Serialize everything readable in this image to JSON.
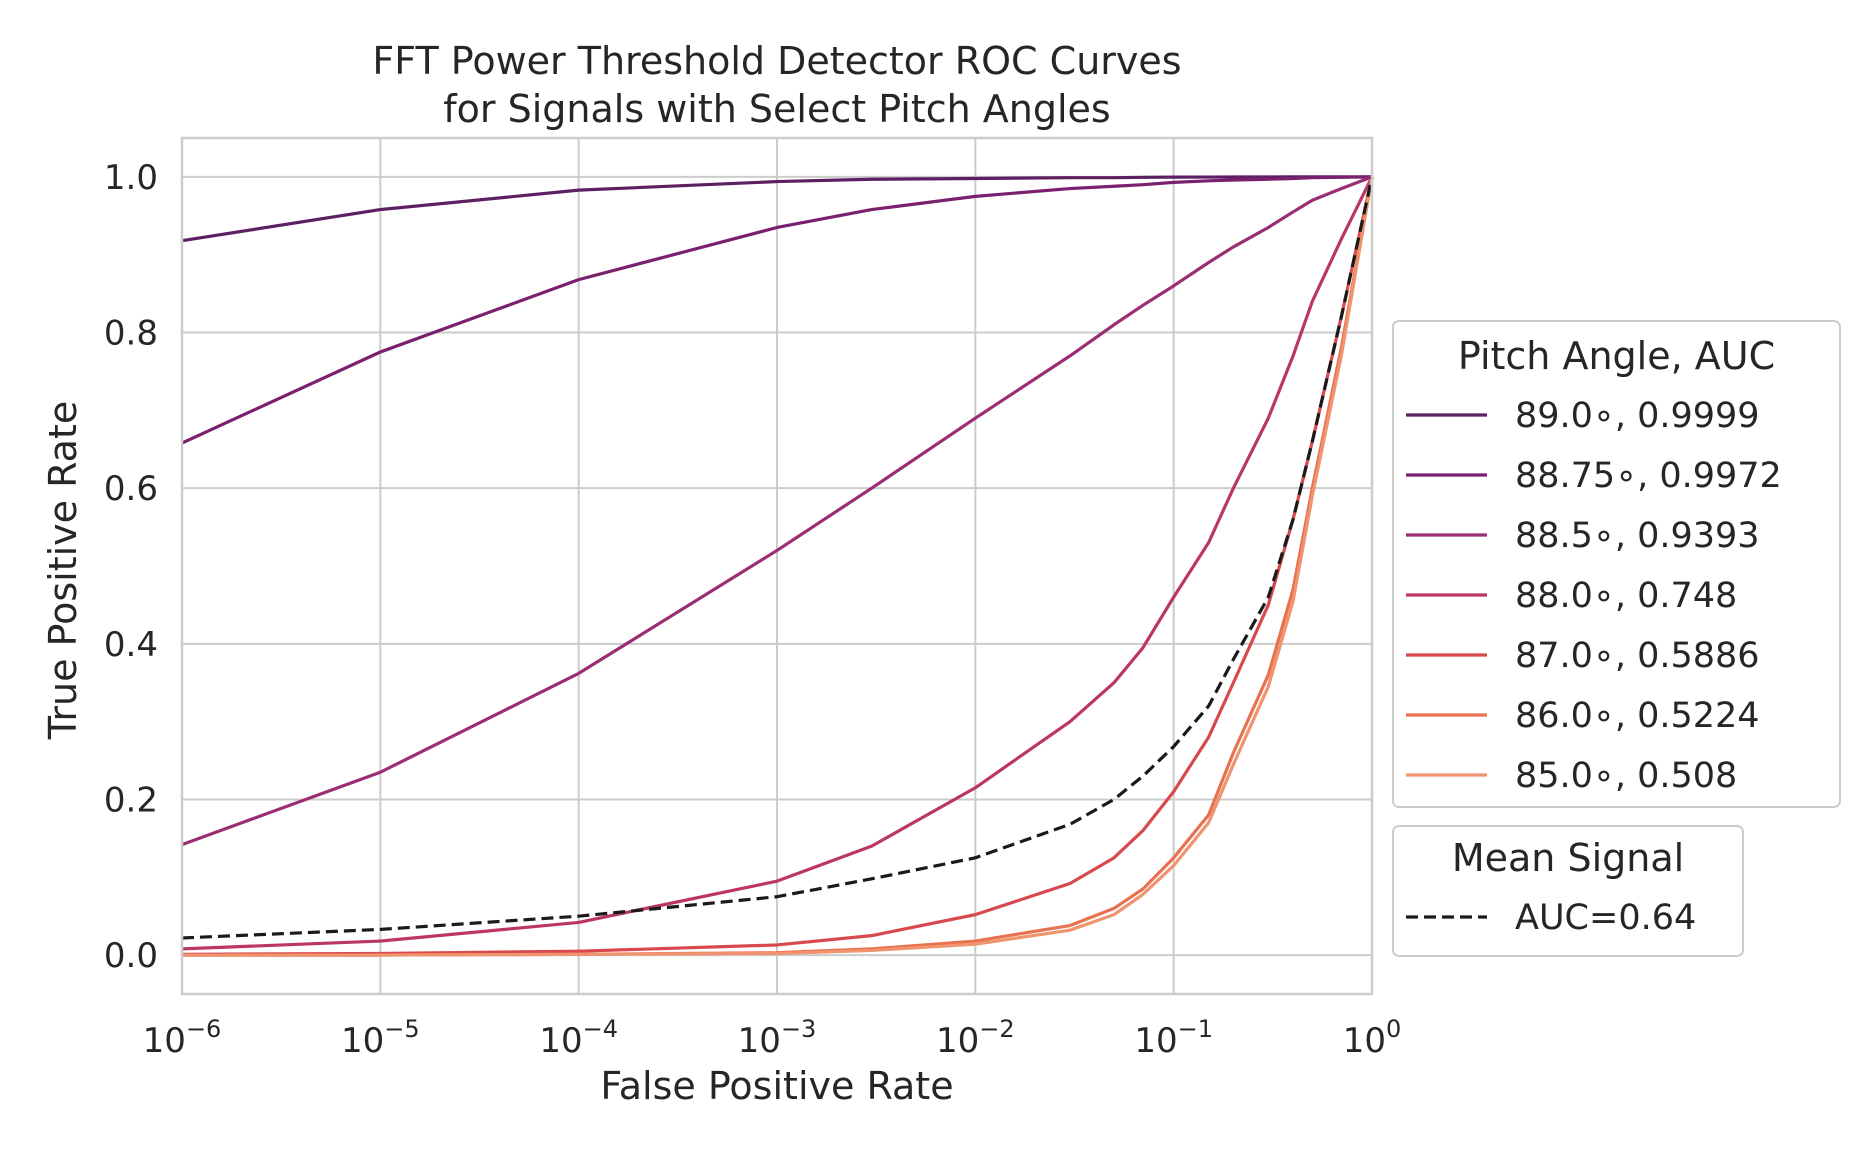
{
  "chart_data": {
    "type": "line",
    "title": "FFT Power Threshold Detector ROC Curves",
    "subtitle": "for Signals with Select Pitch Angles",
    "xlabel": "False Positive Rate",
    "ylabel": "True Positive Rate",
    "xscale": "log",
    "xlim": [
      1e-06,
      1
    ],
    "ylim": [
      -0.05,
      1.05
    ],
    "grid": true,
    "xticks": [
      {
        "value": 1e-06,
        "base": "10",
        "exp": "−6"
      },
      {
        "value": 1e-05,
        "base": "10",
        "exp": "−5"
      },
      {
        "value": 0.0001,
        "base": "10",
        "exp": "−4"
      },
      {
        "value": 0.001,
        "base": "10",
        "exp": "−3"
      },
      {
        "value": 0.01,
        "base": "10",
        "exp": "−2"
      },
      {
        "value": 0.1,
        "base": "10",
        "exp": "−1"
      },
      {
        "value": 1,
        "base": "10",
        "exp": "0"
      }
    ],
    "yticks": [
      {
        "value": 0.0,
        "label": "0.0"
      },
      {
        "value": 0.2,
        "label": "0.2"
      },
      {
        "value": 0.4,
        "label": "0.4"
      },
      {
        "value": 0.6,
        "label": "0.6"
      },
      {
        "value": 0.8,
        "label": "0.8"
      },
      {
        "value": 1.0,
        "label": "1.0"
      }
    ],
    "x": [
      1e-06,
      1e-05,
      0.0001,
      0.001,
      0.003,
      0.01,
      0.03,
      0.05,
      0.07,
      0.1,
      0.15,
      0.2,
      0.3,
      0.4,
      0.5,
      0.7,
      1.0
    ],
    "series": [
      {
        "name": "89.0$^\\circ$, 0.9999",
        "label": "89.0$^\\circ$, 0.9999",
        "color": "#5c1f62",
        "dash": "solid",
        "values": [
          0.918,
          0.958,
          0.983,
          0.994,
          0.997,
          0.998,
          0.999,
          0.999,
          0.9995,
          0.9997,
          0.9998,
          0.9999,
          0.9999,
          1.0,
          1.0,
          1.0,
          1.0
        ]
      },
      {
        "name": "88.75$^\\circ$, 0.9972",
        "label": "88.75$^\\circ$, 0.9972",
        "color": "#7b1f6f",
        "dash": "solid",
        "values": [
          0.658,
          0.775,
          0.868,
          0.935,
          0.958,
          0.975,
          0.985,
          0.988,
          0.99,
          0.993,
          0.995,
          0.996,
          0.997,
          0.998,
          0.999,
          0.9995,
          1.0
        ]
      },
      {
        "name": "88.5$^\\circ$, 0.9393",
        "label": "88.5$^\\circ$, 0.9393",
        "color": "#9a2d73",
        "dash": "solid",
        "values": [
          0.142,
          0.235,
          0.362,
          0.52,
          0.6,
          0.69,
          0.77,
          0.81,
          0.835,
          0.86,
          0.89,
          0.91,
          0.935,
          0.955,
          0.97,
          0.985,
          1.0
        ]
      },
      {
        "name": "88.0$^\\circ$, 0.748",
        "label": "88.0$^\\circ$, 0.748",
        "color": "#bb3666",
        "dash": "solid",
        "values": [
          0.008,
          0.018,
          0.042,
          0.095,
          0.14,
          0.215,
          0.3,
          0.35,
          0.395,
          0.46,
          0.53,
          0.6,
          0.69,
          0.77,
          0.84,
          0.92,
          1.0
        ]
      },
      {
        "name": "87.0$^\\circ$, 0.5886",
        "label": "87.0$^\\circ$, 0.5886",
        "color": "#d8494e",
        "dash": "solid",
        "values": [
          0.001,
          0.002,
          0.005,
          0.013,
          0.025,
          0.052,
          0.092,
          0.125,
          0.16,
          0.21,
          0.28,
          0.35,
          0.45,
          0.56,
          0.66,
          0.82,
          1.0
        ]
      },
      {
        "name": "86.0$^\\circ$, 0.5224",
        "label": "86.0$^\\circ$, 0.5224",
        "color": "#e8714f",
        "dash": "solid",
        "values": [
          0.0,
          0.0,
          0.001,
          0.003,
          0.008,
          0.018,
          0.038,
          0.06,
          0.085,
          0.125,
          0.18,
          0.26,
          0.36,
          0.47,
          0.6,
          0.78,
          1.0
        ]
      },
      {
        "name": "85.0$^\\circ$, 0.508",
        "label": "85.0$^\\circ$, 0.508",
        "color": "#f0936f",
        "dash": "solid",
        "values": [
          0.0,
          0.0,
          0.001,
          0.002,
          0.006,
          0.014,
          0.032,
          0.052,
          0.078,
          0.115,
          0.17,
          0.245,
          0.345,
          0.455,
          0.59,
          0.77,
          1.0
        ]
      },
      {
        "name": "AUC=0.64",
        "label": "AUC=0.64",
        "color": "#1a1a1a",
        "dash": "dashed",
        "values": [
          0.022,
          0.033,
          0.05,
          0.075,
          0.098,
          0.125,
          0.168,
          0.2,
          0.23,
          0.268,
          0.32,
          0.38,
          0.46,
          0.56,
          0.66,
          0.82,
          1.0
        ]
      }
    ],
    "legends": [
      {
        "title": "Pitch Angle, AUC",
        "placement": "right",
        "entries": [
          {
            "text": "89.0$^\\circ$, 0.9999",
            "display": "89.0∘, 0.9999",
            "color": "#5c1f62",
            "dash": "solid"
          },
          {
            "text": "88.75$^\\circ$, 0.9972",
            "display": "88.75∘, 0.9972",
            "color": "#7b1f6f",
            "dash": "solid"
          },
          {
            "text": "88.5$^\\circ$, 0.9393",
            "display": "88.5∘, 0.9393",
            "color": "#9a2d73",
            "dash": "solid"
          },
          {
            "text": "88.0$^\\circ$, 0.748",
            "display": "88.0∘, 0.748",
            "color": "#bb3666",
            "dash": "solid"
          },
          {
            "text": "87.0$^\\circ$, 0.5886",
            "display": "87.0∘, 0.5886",
            "color": "#d8494e",
            "dash": "solid"
          },
          {
            "text": "86.0$^\\circ$, 0.5224",
            "display": "86.0∘, 0.5224",
            "color": "#e8714f",
            "dash": "solid"
          },
          {
            "text": "85.0$^\\circ$, 0.508",
            "display": "85.0∘, 0.508",
            "color": "#f0936f",
            "dash": "solid"
          }
        ]
      },
      {
        "title": "Mean Signal",
        "placement": "right",
        "entries": [
          {
            "text": "AUC=0.64",
            "display": "AUC=0.64",
            "color": "#1a1a1a",
            "dash": "dashed"
          }
        ]
      }
    ]
  }
}
